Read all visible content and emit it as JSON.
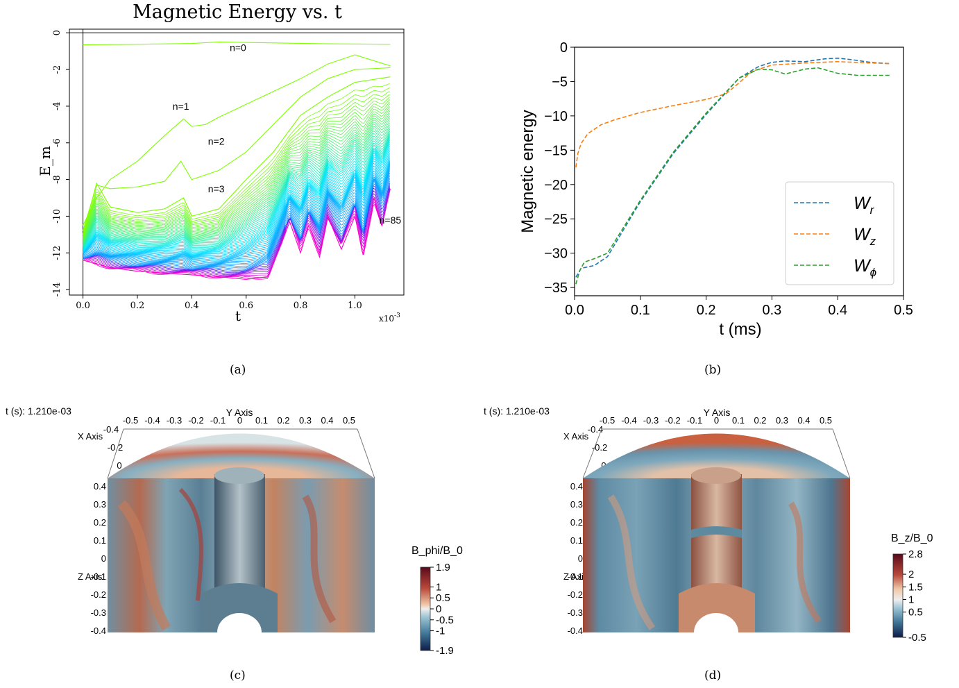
{
  "captions": [
    "(a)",
    "(b)",
    "(c)",
    "(d)"
  ],
  "colors": {
    "wr": "#1f77b4",
    "wz": "#ff7f0e",
    "wphi": "#2ca02c",
    "energy_low": "#ff00cc",
    "energy_mid": "#00e5ff",
    "energy_high": "#7fff00",
    "field_neg": "#0d2a52",
    "field_zero": "#eeeeee",
    "field_pos": "#7a1020"
  },
  "chart_data": [
    {
      "type": "line",
      "title": "Magnetic Energy vs. t",
      "xlabel": "t",
      "ylabel": "E_m",
      "x_multiplier_label": "x10",
      "x_multiplier_exp": "-3",
      "xlim": [
        -5e-05,
        0.00118
      ],
      "ylim": [
        -14.3,
        0.2
      ],
      "xticks": [
        0.0,
        0.2,
        0.4,
        0.6,
        0.8,
        1.0
      ],
      "xtick_labels": [
        "0.0",
        "0.2",
        "0.4",
        "0.6",
        "0.8",
        "1.0"
      ],
      "yticks": [
        0,
        -2,
        -4,
        -6,
        -8,
        -10,
        -12,
        -14
      ],
      "ytick_labels": [
        "0",
        "-2",
        "-4",
        "-6",
        "-8",
        "-10",
        "-12",
        "-14"
      ],
      "annotations": [
        {
          "text": "n=0",
          "x": 0.00057,
          "y": -1.0
        },
        {
          "text": "n=1",
          "x": 0.00036,
          "y": -4.2
        },
        {
          "text": "n=2",
          "x": 0.00049,
          "y": -6.1
        },
        {
          "text": "n=3",
          "x": 0.00049,
          "y": -8.7
        },
        {
          "text": "n=85",
          "x": 0.00113,
          "y": -10.4
        }
      ],
      "series": [
        {
          "name": "n=0",
          "x": [
            0,
            0.0002,
            0.0004,
            0.0005,
            0.0007,
            0.0009,
            0.00113
          ],
          "values": [
            -0.65,
            -0.62,
            -0.58,
            -0.5,
            -0.55,
            -0.6,
            -0.62
          ]
        },
        {
          "name": "n=1",
          "x": [
            0,
            5e-05,
            0.0001,
            0.0002,
            0.0003,
            0.00037,
            0.0004,
            0.00045,
            0.0005,
            0.0006,
            0.0007,
            0.0008,
            0.0009,
            0.001,
            0.00113
          ],
          "values": [
            -10.5,
            -9.0,
            -8.0,
            -7.0,
            -5.6,
            -4.7,
            -5.1,
            -5.0,
            -4.6,
            -3.9,
            -3.2,
            -2.5,
            -1.7,
            -1.2,
            -1.8
          ]
        },
        {
          "name": "n=2",
          "x": [
            0,
            5e-05,
            0.0001,
            0.0002,
            0.0003,
            0.00036,
            0.0004,
            0.0005,
            0.0006,
            0.0007,
            0.0008,
            0.0009,
            0.001,
            0.00113
          ],
          "values": [
            -10.8,
            -8.3,
            -8.5,
            -8.4,
            -8.1,
            -7.0,
            -8.0,
            -7.5,
            -6.5,
            -5.0,
            -3.5,
            -2.5,
            -2.0,
            -1.9
          ]
        },
        {
          "name": "n=3",
          "x": [
            0,
            5e-05,
            0.0001,
            0.0002,
            0.0003,
            0.00037,
            0.0004,
            0.0005,
            0.0006,
            0.0007,
            0.0008,
            0.0009,
            0.001,
            0.00113
          ],
          "values": [
            -11.0,
            -8.2,
            -9.5,
            -9.8,
            -9.6,
            -9.0,
            -10.0,
            -9.6,
            -8.0,
            -6.5,
            -4.5,
            -3.5,
            -2.7,
            -2.4
          ]
        },
        {
          "name": "n=85",
          "x": [
            0,
            5e-05,
            0.0001,
            0.0002,
            0.0003,
            0.0004,
            0.0005,
            0.0006,
            0.00068,
            0.00073,
            0.00076,
            0.0008,
            0.00083,
            0.00087,
            0.0009,
            0.00095,
            0.001,
            0.00103,
            0.00107,
            0.0011,
            0.00113
          ],
          "values": [
            -12.4,
            -12.6,
            -12.8,
            -13.0,
            -13.1,
            -13.2,
            -13.3,
            -13.45,
            -13.3,
            -11.5,
            -10.3,
            -12.0,
            -10.5,
            -12.0,
            -10.0,
            -11.8,
            -10.0,
            -12.1,
            -9.0,
            -10.5,
            -8.5
          ]
        }
      ]
    },
    {
      "type": "line",
      "title": "",
      "xlabel": "t (ms)",
      "ylabel": "Magnetic energy",
      "xlim": [
        0.0,
        0.5
      ],
      "ylim": [
        -36.2,
        0
      ],
      "xticks": [
        0.0,
        0.1,
        0.2,
        0.3,
        0.4,
        0.5
      ],
      "xtick_labels": [
        "0.0",
        "0.1",
        "0.2",
        "0.3",
        "0.4",
        "0.5"
      ],
      "yticks": [
        0,
        -5,
        -10,
        -15,
        -20,
        -25,
        -30,
        -35
      ],
      "ytick_labels": [
        "0",
        "−5",
        "−10",
        "−15",
        "−20",
        "−25",
        "−30",
        "−35"
      ],
      "legend_position": "lower-right",
      "series": [
        {
          "name": "W",
          "subscript": "r",
          "color_key": "wr",
          "x": [
            0.002,
            0.01,
            0.03,
            0.05,
            0.1,
            0.15,
            0.2,
            0.25,
            0.28,
            0.3,
            0.32,
            0.35,
            0.38,
            0.4,
            0.42,
            0.45,
            0.48
          ],
          "values": [
            -33.5,
            -32.2,
            -31.8,
            -30.5,
            -22.5,
            -15.5,
            -9.8,
            -4.5,
            -2.8,
            -2.2,
            -2.0,
            -2.1,
            -1.7,
            -1.6,
            -1.8,
            -2.2,
            -2.4
          ]
        },
        {
          "name": "W",
          "subscript": "z",
          "color_key": "wz",
          "x": [
            0.002,
            0.005,
            0.01,
            0.02,
            0.04,
            0.06,
            0.1,
            0.15,
            0.2,
            0.23,
            0.25,
            0.27,
            0.3,
            0.35,
            0.4,
            0.45,
            0.48
          ],
          "values": [
            -17.5,
            -15.5,
            -14.0,
            -12.6,
            -11.3,
            -10.6,
            -9.5,
            -8.5,
            -7.6,
            -6.8,
            -5.2,
            -3.5,
            -2.6,
            -2.3,
            -2.1,
            -2.3,
            -2.4
          ]
        },
        {
          "name": "W",
          "subscript": "ϕ",
          "color_key": "wphi",
          "x": [
            0.002,
            0.008,
            0.015,
            0.03,
            0.05,
            0.1,
            0.15,
            0.2,
            0.25,
            0.28,
            0.3,
            0.32,
            0.35,
            0.37,
            0.4,
            0.43,
            0.48
          ],
          "values": [
            -34.5,
            -32.5,
            -31.3,
            -30.8,
            -30.0,
            -22.3,
            -15.3,
            -9.6,
            -4.5,
            -3.2,
            -3.3,
            -3.9,
            -3.2,
            -3.0,
            -3.8,
            -4.1,
            -4.1
          ]
        }
      ]
    }
  ],
  "panel_c": {
    "time_label": "t (s): 1.210e-03",
    "y_axis_title": "Y Axis",
    "x_axis_title": "X Axis",
    "z_axis_title": "Z Axis",
    "y_ticks": [
      "-0.5",
      "-0.4",
      "-0.3",
      "-0.2",
      "-0.1",
      "0",
      "0.1",
      "0.2",
      "0.3",
      "0.4",
      "0.5"
    ],
    "x_ticks": [
      "-0.4",
      "-0.2",
      "0"
    ],
    "z_ticks": [
      "0.4",
      "0.3",
      "0.2",
      "0.1",
      "0",
      "-0.1",
      "-0.2",
      "-0.3",
      "-0.4"
    ],
    "colorbar_title": "B_phi/B_0",
    "colorbar_labels": [
      "1.9",
      "1",
      "0.5",
      "0",
      "-0.5",
      "-1",
      "-1.9"
    ],
    "colorbar_values": [
      1.9,
      1,
      0.5,
      0,
      -0.5,
      -1,
      -1.9
    ],
    "colorbar_range": [
      -1.9,
      1.9
    ]
  },
  "panel_d": {
    "time_label": "t (s): 1.210e-03",
    "y_axis_title": "Y Axis",
    "x_axis_title": "X Axis",
    "z_axis_title": "Z Axis",
    "y_ticks": [
      "-0.5",
      "-0.4",
      "-0.3",
      "-0.2",
      "-0.1",
      "0",
      "0.1",
      "0.2",
      "0.3",
      "0.4",
      "0.5"
    ],
    "x_ticks": [
      "-0.4",
      "-0.2",
      "0"
    ],
    "z_ticks": [
      "0.4",
      "0.3",
      "0.2",
      "0.1",
      "0",
      "-0.1",
      "-0.2",
      "-0.3",
      "-0.4"
    ],
    "colorbar_title": "B_z/B_0",
    "colorbar_labels": [
      "2.8",
      "2",
      "1.5",
      "1",
      "0.5",
      "-0.5"
    ],
    "colorbar_values": [
      2.8,
      2,
      1.5,
      1,
      0.5,
      -0.5
    ],
    "colorbar_range": [
      -0.5,
      2.8
    ]
  }
}
